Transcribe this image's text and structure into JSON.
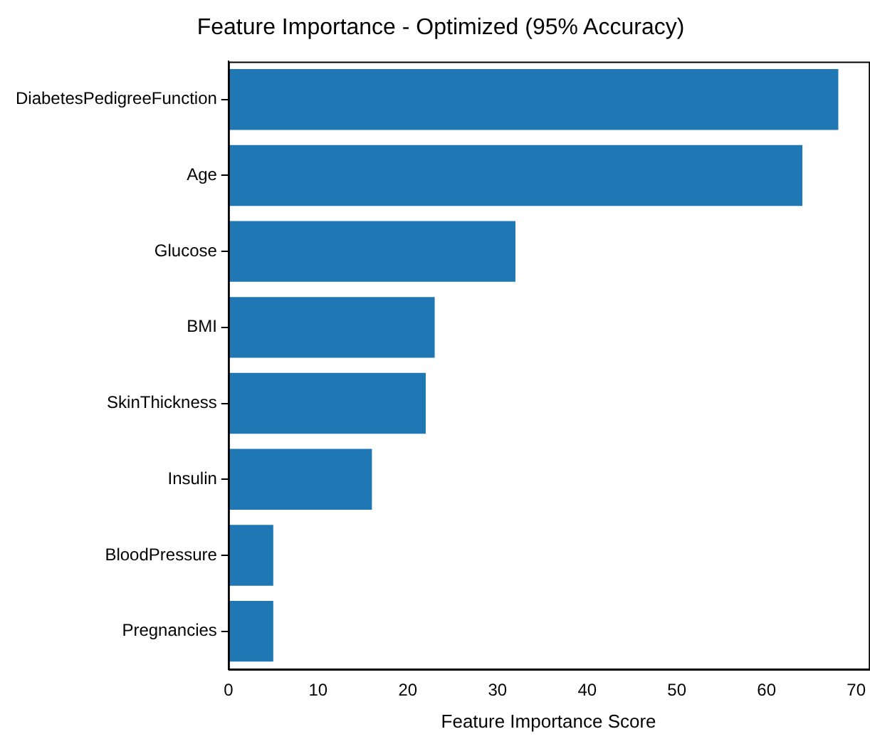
{
  "chart_data": {
    "type": "bar",
    "orientation": "horizontal",
    "title": "Feature Importance - Optimized (95% Accuracy)",
    "xlabel": "Feature Importance Score",
    "categories": [
      "DiabetesPedigreeFunction",
      "Age",
      "Glucose",
      "BMI",
      "SkinThickness",
      "Insulin",
      "BloodPressure",
      "Pregnancies"
    ],
    "values": [
      68,
      64,
      32,
      23,
      22,
      16,
      5,
      5
    ],
    "color": "#1f77b4",
    "xlim": [
      0,
      71.4
    ],
    "xticks": [
      0,
      10,
      20,
      30,
      40,
      50,
      60,
      70
    ],
    "grid": false,
    "legend": false
  }
}
